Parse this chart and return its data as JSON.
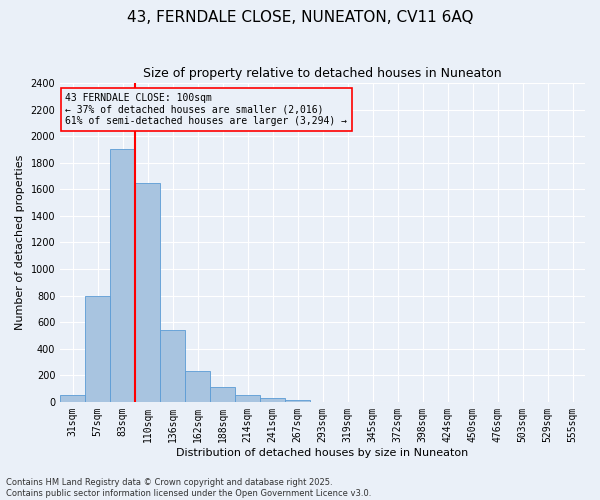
{
  "title1": "43, FERNDALE CLOSE, NUNEATON, CV11 6AQ",
  "title2": "Size of property relative to detached houses in Nuneaton",
  "xlabel": "Distribution of detached houses by size in Nuneaton",
  "ylabel": "Number of detached properties",
  "footnote": "Contains HM Land Registry data © Crown copyright and database right 2025.\nContains public sector information licensed under the Open Government Licence v3.0.",
  "annotation_line1": "43 FERNDALE CLOSE: 100sqm",
  "annotation_line2": "← 37% of detached houses are smaller (2,016)",
  "annotation_line3": "61% of semi-detached houses are larger (3,294) →",
  "bar_categories": [
    "31sqm",
    "57sqm",
    "83sqm",
    "110sqm",
    "136sqm",
    "162sqm",
    "188sqm",
    "214sqm",
    "241sqm",
    "267sqm",
    "293sqm",
    "319sqm",
    "345sqm",
    "372sqm",
    "398sqm",
    "424sqm",
    "450sqm",
    "476sqm",
    "503sqm",
    "529sqm",
    "555sqm"
  ],
  "bar_values": [
    55,
    800,
    1900,
    1650,
    540,
    235,
    115,
    55,
    28,
    15,
    0,
    0,
    0,
    0,
    0,
    0,
    0,
    0,
    0,
    0,
    0
  ],
  "bar_color": "#a8c4e0",
  "bar_edge_color": "#5b9bd5",
  "vline_x_index": 2.5,
  "vline_color": "red",
  "ylim": [
    0,
    2400
  ],
  "yticks": [
    0,
    200,
    400,
    600,
    800,
    1000,
    1200,
    1400,
    1600,
    1800,
    2000,
    2200,
    2400
  ],
  "background_color": "#eaf0f8",
  "grid_color": "#ffffff",
  "title_fontsize": 11,
  "subtitle_fontsize": 9,
  "axis_label_fontsize": 8,
  "tick_fontsize": 7,
  "annotation_fontsize": 7,
  "footnote_fontsize": 6
}
